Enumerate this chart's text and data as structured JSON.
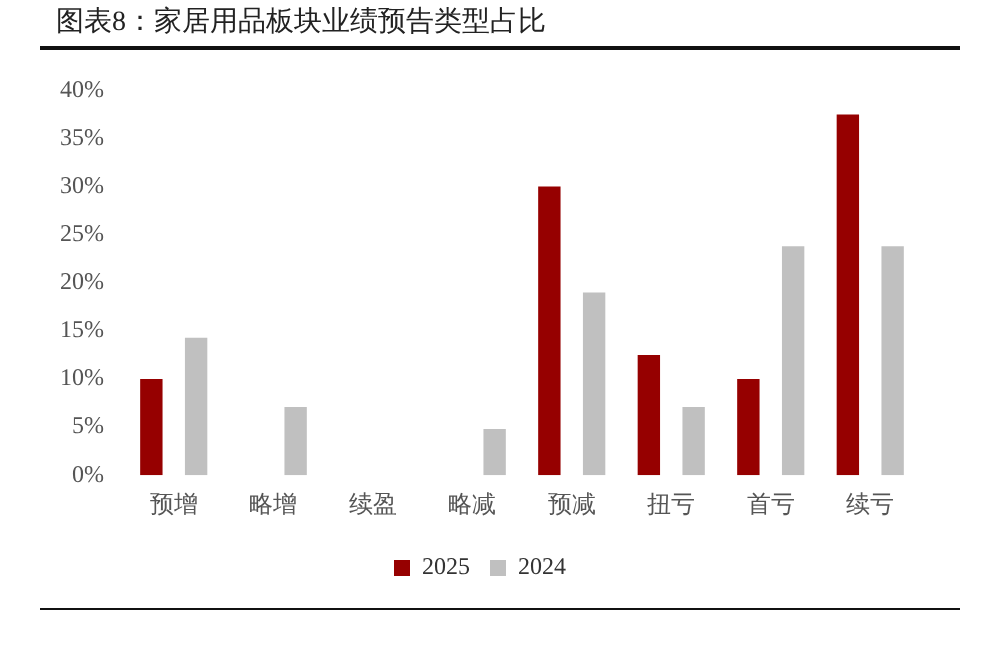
{
  "chart_data": {
    "type": "bar",
    "title": "图表8：家居用品板块业绩预告类型占比",
    "categories": [
      "预增",
      "略增",
      "续盈",
      "略减",
      "预减",
      "扭亏",
      "首亏",
      "续亏"
    ],
    "series": [
      {
        "name": "2025",
        "color": "#960000",
        "values": [
          10,
          null,
          null,
          null,
          30,
          12.5,
          10,
          37.5
        ]
      },
      {
        "name": "2024",
        "color": "#c0c0c0",
        "values": [
          14.3,
          7.1,
          null,
          4.8,
          19,
          7.1,
          23.8,
          23.8
        ]
      }
    ],
    "ylim": [
      0,
      40
    ],
    "yticks": [
      {
        "value": 0,
        "label": "0%"
      },
      {
        "value": 5,
        "label": "5%"
      },
      {
        "value": 10,
        "label": "10%"
      },
      {
        "value": 15,
        "label": "15%"
      },
      {
        "value": 20,
        "label": "20%"
      },
      {
        "value": 25,
        "label": "25%"
      },
      {
        "value": 30,
        "label": "30%"
      },
      {
        "value": 35,
        "label": "35%"
      },
      {
        "value": 40,
        "label": "40%"
      }
    ],
    "grid": false,
    "legend": "bottom"
  }
}
